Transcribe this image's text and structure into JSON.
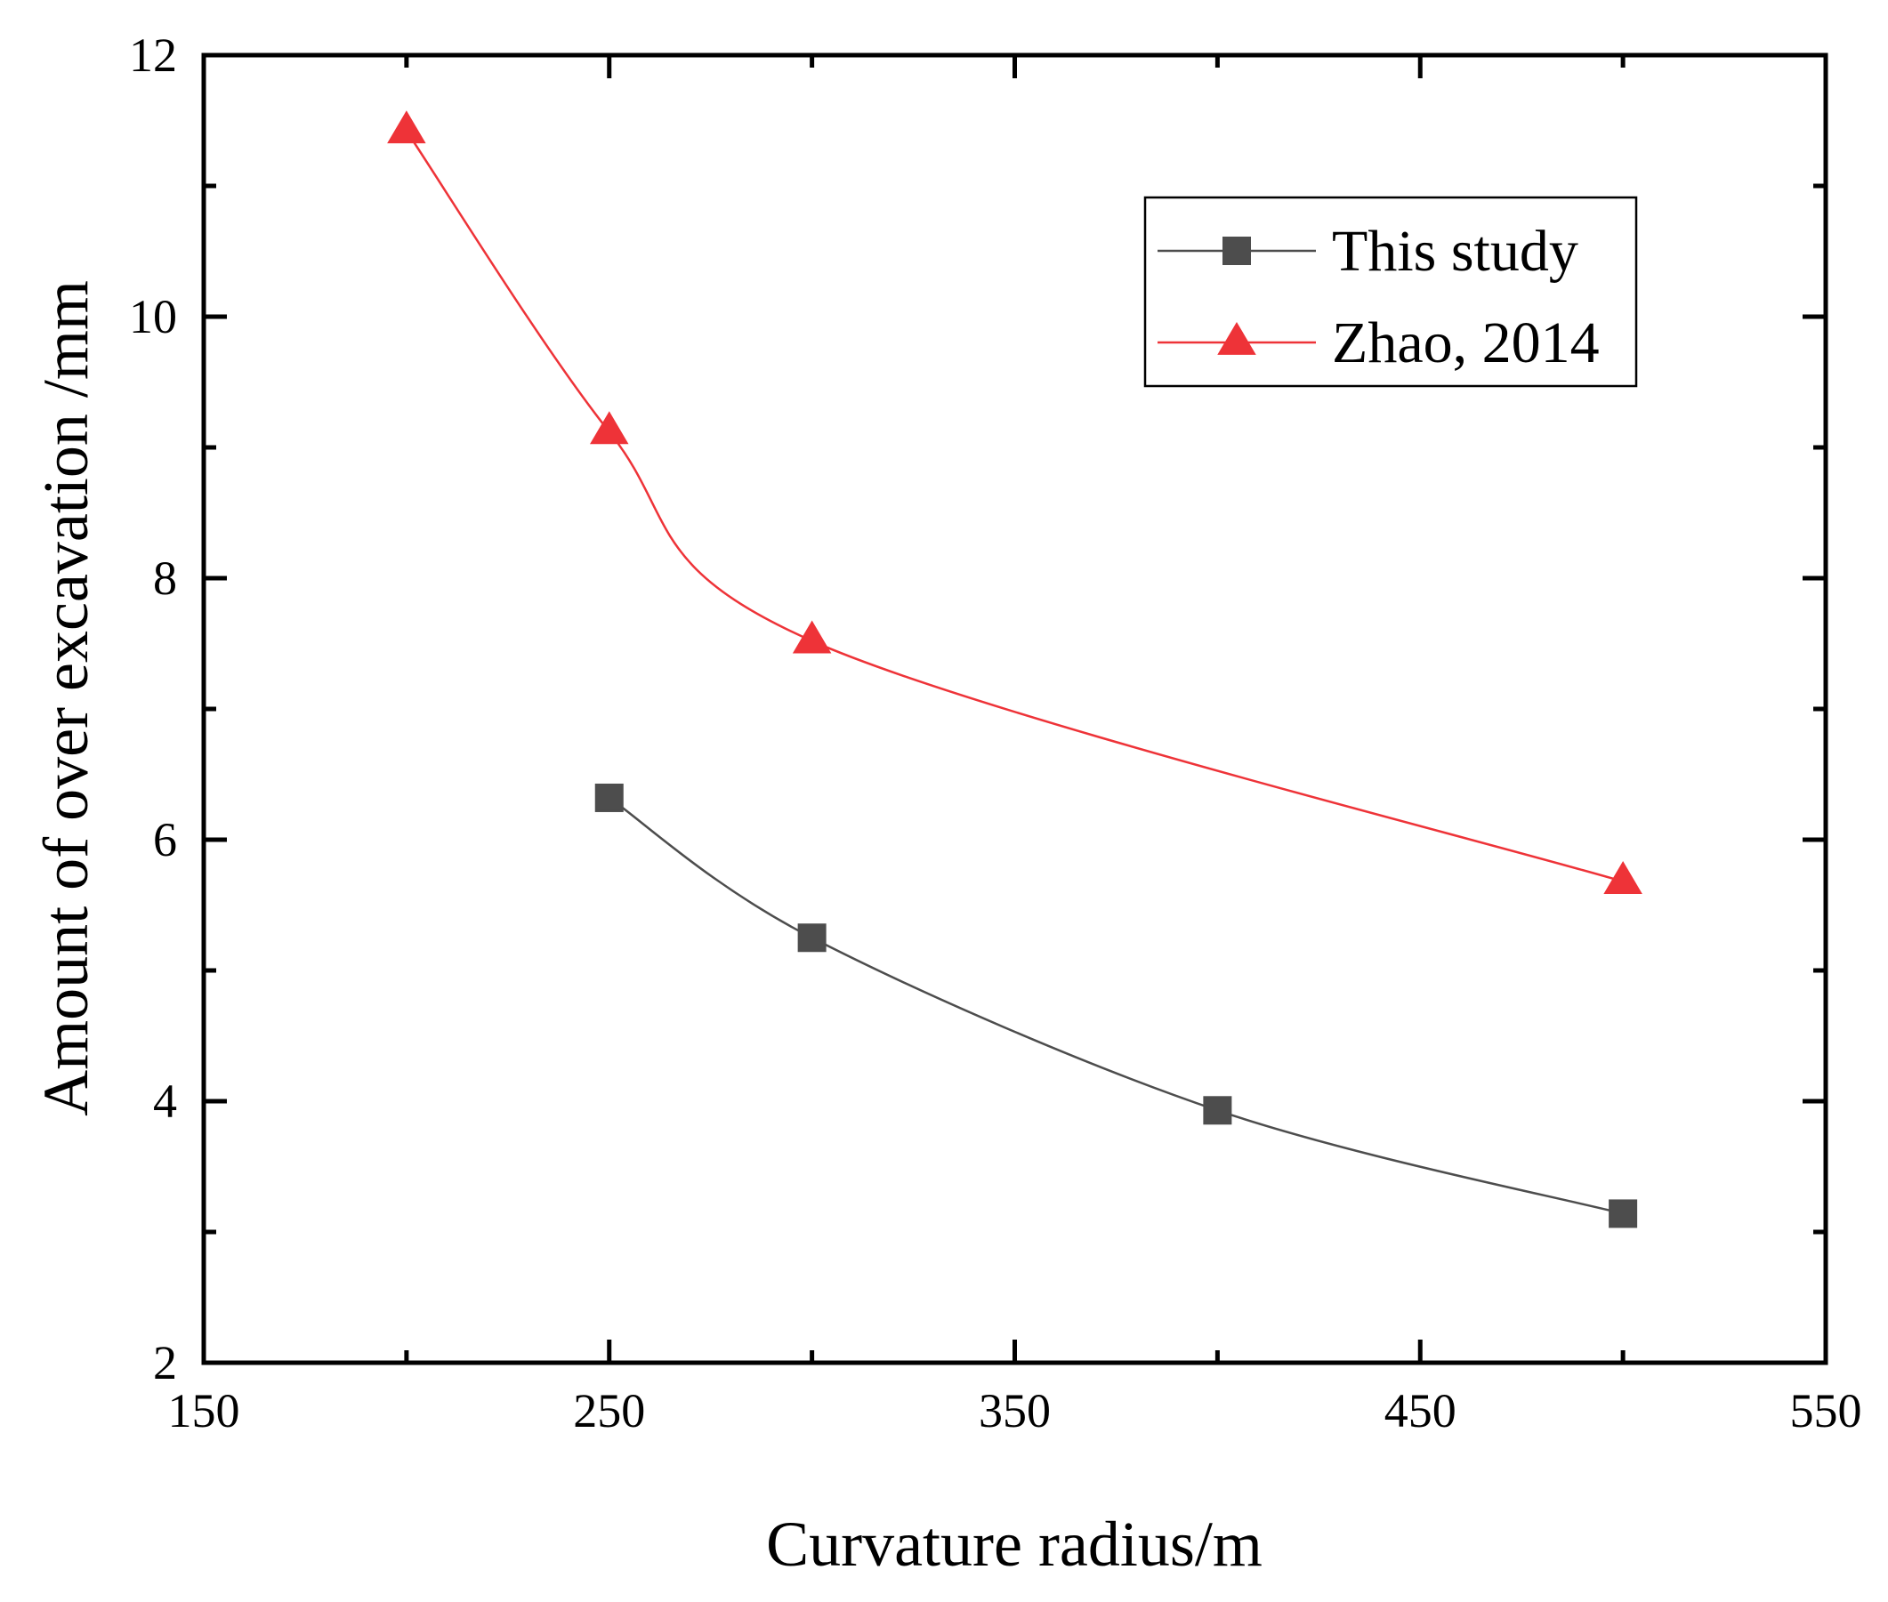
{
  "chart_data": {
    "type": "line",
    "title": "",
    "xlabel": "Curvature radius/m",
    "ylabel": "Amount of over excavation /mm",
    "xlim": [
      150,
      550
    ],
    "ylim": [
      2,
      12
    ],
    "x_ticks": [
      150,
      250,
      350,
      450,
      550
    ],
    "y_ticks": [
      2,
      4,
      6,
      8,
      10,
      12
    ],
    "x_minor_ticks": [
      200,
      300,
      400,
      500
    ],
    "y_minor_ticks": [
      3,
      5,
      7,
      9,
      11
    ],
    "legend_position": "top-right",
    "series": [
      {
        "name": "This study",
        "marker": "square",
        "color": "#4d4d4d",
        "x": [
          250,
          300,
          400,
          500
        ],
        "y": [
          6.32,
          5.25,
          3.93,
          3.14
        ]
      },
      {
        "name": "Zhao, 2014",
        "marker": "triangle",
        "color": "#ee3338",
        "x": [
          200,
          250,
          300,
          500
        ],
        "y": [
          11.42,
          9.12,
          7.52,
          5.68
        ]
      }
    ]
  }
}
